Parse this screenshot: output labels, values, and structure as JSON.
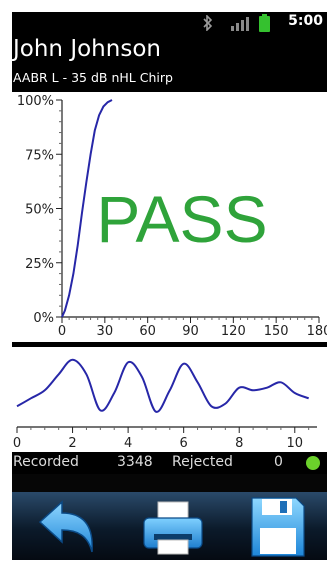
{
  "status_bar": {
    "time": "5:00",
    "icons": [
      "bluetooth-icon",
      "signal-icon",
      "battery-icon"
    ],
    "battery_color": "#35c12f"
  },
  "header": {
    "patient_name": "John Johnson",
    "test_info": "AABR L - 35 dB nHL Chirp"
  },
  "result": {
    "label": "PASS",
    "color": "#2fa33a"
  },
  "chart_data": [
    {
      "type": "line",
      "x": [
        0,
        2,
        5,
        8,
        11,
        14,
        17,
        20,
        23,
        26,
        29,
        32,
        35
      ],
      "values": [
        0,
        3,
        10,
        20,
        33,
        48,
        62,
        75,
        86,
        93,
        97,
        99,
        100
      ],
      "xlim": [
        0,
        180
      ],
      "ylim": [
        0,
        100
      ],
      "x_ticks": [
        "0",
        "30",
        "60",
        "90",
        "120",
        "150",
        "180"
      ],
      "y_ticks": [
        "0%",
        "25%",
        "50%",
        "75%",
        "100%"
      ],
      "line_color": "#2727a8"
    },
    {
      "type": "line",
      "x": [
        0,
        0.5,
        1.0,
        1.5,
        2.0,
        2.5,
        3.0,
        3.5,
        4.0,
        4.5,
        5.0,
        5.5,
        6.0,
        6.5,
        7.0,
        7.5,
        8.0,
        8.5,
        9.0,
        9.5,
        10.0,
        10.5
      ],
      "values": [
        -0.8,
        -0.5,
        -0.2,
        0.4,
        0.95,
        0.4,
        -0.95,
        -0.3,
        0.85,
        0.3,
        -1.0,
        -0.2,
        0.8,
        0.1,
        -0.8,
        -0.7,
        -0.1,
        -0.2,
        -0.1,
        0.1,
        -0.3,
        -0.5
      ],
      "xlim": [
        0,
        10.8
      ],
      "ylim": [
        -1.2,
        1.2
      ],
      "x_ticks": [
        "0",
        "2",
        "4",
        "6",
        "8",
        "10"
      ],
      "line_color": "#2727a8"
    }
  ],
  "stats": {
    "recorded_label": "Recorded",
    "recorded_value": "3348",
    "rejected_label": "Rejected",
    "rejected_value": "0",
    "status_color": "#6bd12b"
  },
  "toolbar": {
    "buttons": [
      "back-arrow-icon",
      "print-icon",
      "save-floppy-icon"
    ]
  }
}
